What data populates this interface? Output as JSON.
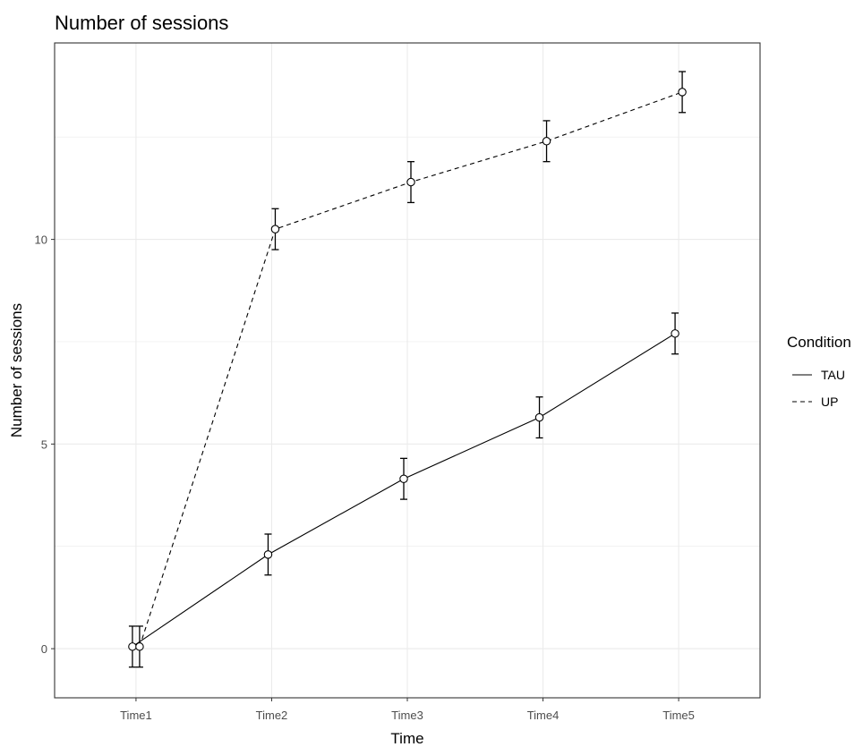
{
  "chart_data": {
    "type": "line",
    "title": "Number of sessions",
    "xlabel": "Time",
    "ylabel": "Number of sessions",
    "categories": [
      "Time1",
      "Time2",
      "Time3",
      "Time4",
      "Time5"
    ],
    "ylim": [
      -1.2,
      14.8
    ],
    "yticks": [
      0,
      5,
      10
    ],
    "grid": true,
    "error_bars": true,
    "legend": {
      "title": "Condition",
      "placement": "right"
    },
    "series": [
      {
        "name": "TAU",
        "line_style": "solid",
        "values": [
          0.05,
          2.3,
          4.15,
          5.65,
          7.7
        ],
        "error": [
          0.5,
          0.5,
          0.5,
          0.5,
          0.5
        ]
      },
      {
        "name": "UP",
        "line_style": "dashed",
        "values": [
          0.05,
          10.25,
          11.4,
          12.4,
          13.6
        ],
        "error": [
          0.5,
          0.5,
          0.5,
          0.5,
          0.5
        ]
      }
    ]
  }
}
